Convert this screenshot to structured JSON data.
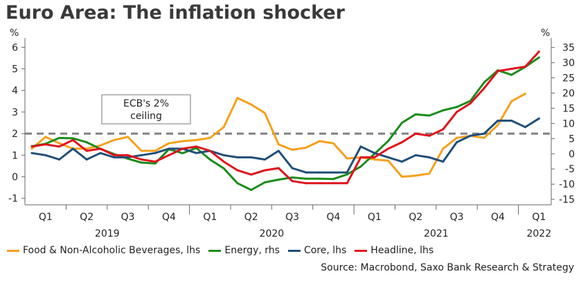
{
  "title": "Euro Area: The inflation shocker",
  "source": "Source: Macrobond, Saxo Bank Research & Strategy",
  "chart_data": {
    "type": "line",
    "left_axis": {
      "unit": "%",
      "range": [
        -1.3,
        6.3
      ],
      "ticks": [
        "-1",
        "0",
        "1",
        "2",
        "3",
        "4",
        "5",
        "6"
      ]
    },
    "right_axis": {
      "unit": "%",
      "range": [
        -16.8,
        37.2
      ],
      "ticks": [
        "-15",
        "-10",
        "-5",
        "0",
        "5",
        "10",
        "15",
        "20",
        "25",
        "30",
        "35"
      ]
    },
    "x": {
      "months": [
        "2019-01",
        "2019-02",
        "2019-03",
        "2019-04",
        "2019-05",
        "2019-06",
        "2019-07",
        "2019-08",
        "2019-09",
        "2019-10",
        "2019-11",
        "2019-12",
        "2020-01",
        "2020-02",
        "2020-03",
        "2020-04",
        "2020-05",
        "2020-06",
        "2020-07",
        "2020-08",
        "2020-09",
        "2020-10",
        "2020-11",
        "2020-12",
        "2021-01",
        "2021-02",
        "2021-03",
        "2021-04",
        "2021-05",
        "2021-06",
        "2021-07",
        "2021-08",
        "2021-09",
        "2021-10",
        "2021-11",
        "2021-12",
        "2022-01",
        "2022-02",
        "2022-03"
      ],
      "quarter_labels": [
        {
          "label": "Q1",
          "at": "2019-02"
        },
        {
          "label": "Q2",
          "at": "2019-05"
        },
        {
          "label": "Q3",
          "at": "2019-08"
        },
        {
          "label": "Q4",
          "at": "2019-11"
        },
        {
          "label": "Q1",
          "at": "2020-02"
        },
        {
          "label": "Q2",
          "at": "2020-05"
        },
        {
          "label": "Q3",
          "at": "2020-08"
        },
        {
          "label": "Q4",
          "at": "2020-11"
        },
        {
          "label": "Q1",
          "at": "2021-02"
        },
        {
          "label": "Q2",
          "at": "2021-05"
        },
        {
          "label": "Q3",
          "at": "2021-08"
        },
        {
          "label": "Q4",
          "at": "2021-11"
        },
        {
          "label": "Q1",
          "at": "2022-02"
        }
      ],
      "year_labels": [
        {
          "label": "2019",
          "at": "2019-06"
        },
        {
          "label": "2020",
          "at": "2020-06"
        },
        {
          "label": "2021",
          "at": "2021-06"
        },
        {
          "label": "2022",
          "at": "2022-02"
        }
      ]
    },
    "series": [
      {
        "name": "Food & Non-Alcoholic Beverages, lhs",
        "axis": "left",
        "color": "#f5a11c",
        "values": [
          1.3,
          1.85,
          1.55,
          1.3,
          1.3,
          1.45,
          1.7,
          1.85,
          1.2,
          1.2,
          1.55,
          1.65,
          1.7,
          1.8,
          2.3,
          3.65,
          3.35,
          2.95,
          1.5,
          1.25,
          1.35,
          1.65,
          1.55,
          0.85,
          0.9,
          0.8,
          0.75,
          0.0,
          0.05,
          0.15,
          1.3,
          1.8,
          1.9,
          1.8,
          2.4,
          3.5,
          3.85,
          null,
          null
        ]
      },
      {
        "name": "Energy, rhs",
        "axis": "right",
        "color": "#1a8c1a",
        "values": [
          2.5,
          3.3,
          5.2,
          5.1,
          3.8,
          1.6,
          -0.1,
          -1.6,
          -2.9,
          -3.2,
          1.5,
          0.2,
          1.9,
          -1.9,
          -4.8,
          -9.7,
          -11.9,
          -9.4,
          -8.5,
          -7.8,
          -8.2,
          -8.2,
          -8.3,
          -6.8,
          -4.2,
          0.0,
          4.2,
          10.2,
          13.0,
          12.6,
          14.3,
          15.4,
          17.4,
          23.5,
          27.5,
          26.0,
          28.6,
          31.7,
          null
        ]
      },
      {
        "name": "Core, lhs",
        "axis": "left",
        "color": "#1f4e79",
        "values": [
          1.1,
          1.0,
          0.8,
          1.3,
          0.8,
          1.1,
          0.9,
          0.9,
          1.0,
          1.1,
          1.3,
          1.3,
          1.1,
          1.2,
          1.0,
          0.9,
          0.9,
          0.8,
          1.2,
          0.4,
          0.2,
          0.2,
          0.2,
          0.2,
          1.4,
          1.1,
          0.9,
          0.7,
          1.0,
          0.9,
          0.7,
          1.6,
          1.9,
          2.0,
          2.6,
          2.6,
          2.3,
          2.7,
          null
        ]
      },
      {
        "name": "Headline, lhs",
        "axis": "left",
        "color": "#e0121c",
        "values": [
          1.4,
          1.5,
          1.4,
          1.7,
          1.2,
          1.3,
          1.0,
          1.0,
          0.8,
          0.7,
          1.0,
          1.3,
          1.4,
          1.2,
          0.7,
          0.3,
          0.1,
          0.3,
          0.4,
          -0.2,
          -0.3,
          -0.3,
          -0.3,
          -0.3,
          0.9,
          0.9,
          1.3,
          1.6,
          2.0,
          1.9,
          2.2,
          3.0,
          3.4,
          4.1,
          4.9,
          5.0,
          5.1,
          5.8,
          null
        ]
      }
    ],
    "annotations": [
      {
        "text_lines": [
          "ECB's 2%",
          "ceiling"
        ],
        "reference_line": {
          "axis": "left",
          "value": 2,
          "style": "dashed",
          "color": "#808080"
        }
      }
    ]
  }
}
